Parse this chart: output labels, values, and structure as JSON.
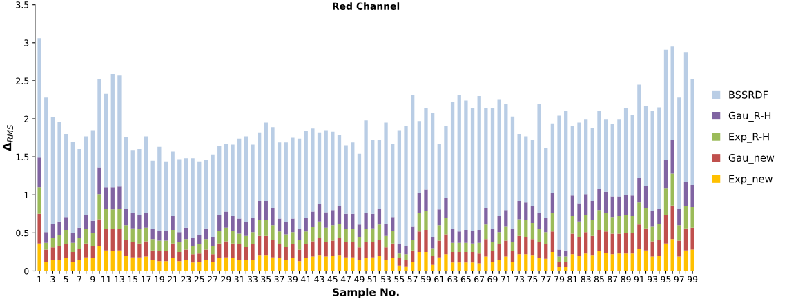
{
  "chart_data": {
    "type": "bar",
    "stacked": true,
    "title": "Red Channel",
    "xlabel": "Sample No.",
    "ylabel": "Δ$_{RMS}$",
    "categories": [
      "1",
      null,
      "3",
      null,
      "5",
      null,
      "7",
      null,
      "9",
      null,
      "11",
      null,
      "13",
      null,
      "15",
      null,
      "17",
      null,
      "19",
      null,
      "21",
      null,
      "23",
      null,
      "25",
      null,
      "27",
      null,
      "29",
      null,
      "31",
      null,
      "33",
      null,
      "35",
      null,
      "37",
      null,
      "39",
      null,
      "41",
      null,
      "43",
      null,
      "45",
      null,
      "47",
      null,
      "49",
      null,
      "51",
      null,
      "53",
      null,
      "55",
      null,
      "57",
      null,
      "59",
      null,
      "61",
      null,
      "63",
      null,
      "65",
      null,
      "67",
      null,
      "69",
      null,
      "71",
      null,
      "73",
      null,
      "75",
      null,
      "77",
      null,
      "79",
      null,
      "81",
      null,
      "83",
      null,
      "85",
      null,
      "87",
      null,
      "89",
      null,
      "91",
      null,
      "93",
      null,
      "95",
      null,
      "97",
      null,
      "99"
    ],
    "series": [
      {
        "name": "Exp_new",
        "color": "#ffc000",
        "values": [
          0.36,
          0.12,
          0.14,
          0.14,
          0.17,
          0.12,
          0.14,
          0.18,
          0.17,
          0.33,
          0.27,
          0.26,
          0.27,
          0.2,
          0.18,
          0.18,
          0.19,
          0.14,
          0.13,
          0.13,
          0.17,
          0.13,
          0.14,
          0.11,
          0.12,
          0.14,
          0.12,
          0.17,
          0.18,
          0.17,
          0.15,
          0.14,
          0.15,
          0.21,
          0.21,
          0.18,
          0.17,
          0.15,
          0.17,
          0.13,
          0.17,
          0.19,
          0.21,
          0.19,
          0.2,
          0.21,
          0.18,
          0.18,
          0.15,
          0.17,
          0.18,
          0.2,
          0.15,
          0.17,
          0.07,
          0.06,
          0.12,
          0.25,
          0.25,
          0.08,
          0.18,
          0.22,
          0.11,
          0.11,
          0.11,
          0.11,
          0.1,
          0.19,
          0.12,
          0.15,
          0.19,
          0.12,
          0.22,
          0.22,
          0.21,
          0.17,
          0.16,
          0.25,
          0.05,
          0.05,
          0.22,
          0.2,
          0.23,
          0.21,
          0.26,
          0.24,
          0.22,
          0.23,
          0.23,
          0.23,
          0.29,
          0.27,
          0.19,
          0.2,
          0.36,
          0.42,
          0.19,
          0.27,
          0.28
        ]
      },
      {
        "name": "Gau_new",
        "color": "#c0504d",
        "values": [
          0.39,
          0.16,
          0.17,
          0.19,
          0.18,
          0.13,
          0.15,
          0.18,
          0.16,
          0.35,
          0.28,
          0.29,
          0.28,
          0.21,
          0.2,
          0.18,
          0.2,
          0.13,
          0.13,
          0.13,
          0.19,
          0.12,
          0.14,
          0.11,
          0.11,
          0.14,
          0.1,
          0.19,
          0.21,
          0.19,
          0.2,
          0.18,
          0.2,
          0.25,
          0.25,
          0.23,
          0.18,
          0.17,
          0.18,
          0.15,
          0.18,
          0.2,
          0.23,
          0.19,
          0.2,
          0.22,
          0.2,
          0.2,
          0.16,
          0.21,
          0.2,
          0.21,
          0.16,
          0.19,
          0.1,
          0.09,
          0.15,
          0.27,
          0.29,
          0.12,
          0.22,
          0.26,
          0.14,
          0.14,
          0.14,
          0.14,
          0.13,
          0.23,
          0.14,
          0.2,
          0.21,
          0.14,
          0.24,
          0.23,
          0.21,
          0.21,
          0.19,
          0.27,
          0.07,
          0.07,
          0.27,
          0.25,
          0.28,
          0.25,
          0.28,
          0.28,
          0.27,
          0.26,
          0.27,
          0.27,
          0.32,
          0.29,
          0.2,
          0.21,
          0.37,
          0.44,
          0.21,
          0.29,
          0.29
        ]
      },
      {
        "name": "Exp_R-H",
        "color": "#9bbb59",
        "values": [
          0.35,
          0.09,
          0.13,
          0.14,
          0.19,
          0.12,
          0.14,
          0.19,
          0.17,
          0.33,
          0.27,
          0.26,
          0.27,
          0.19,
          0.18,
          0.19,
          0.18,
          0.15,
          0.14,
          0.14,
          0.18,
          0.13,
          0.14,
          0.11,
          0.12,
          0.14,
          0.11,
          0.17,
          0.18,
          0.17,
          0.14,
          0.14,
          0.16,
          0.21,
          0.21,
          0.19,
          0.17,
          0.16,
          0.16,
          0.13,
          0.17,
          0.19,
          0.21,
          0.19,
          0.2,
          0.19,
          0.17,
          0.17,
          0.14,
          0.17,
          0.18,
          0.2,
          0.15,
          0.17,
          0.06,
          0.07,
          0.14,
          0.24,
          0.25,
          0.1,
          0.2,
          0.22,
          0.12,
          0.12,
          0.12,
          0.11,
          0.14,
          0.19,
          0.12,
          0.16,
          0.19,
          0.12,
          0.22,
          0.22,
          0.21,
          0.17,
          0.16,
          0.24,
          0.07,
          0.07,
          0.23,
          0.2,
          0.23,
          0.21,
          0.26,
          0.24,
          0.22,
          0.23,
          0.23,
          0.22,
          0.29,
          0.27,
          0.2,
          0.21,
          0.36,
          0.42,
          0.2,
          0.29,
          0.27
        ]
      },
      {
        "name": "Gau_R-H",
        "color": "#8064a2",
        "values": [
          0.39,
          0.14,
          0.18,
          0.18,
          0.17,
          0.13,
          0.14,
          0.18,
          0.16,
          0.35,
          0.28,
          0.29,
          0.29,
          0.22,
          0.2,
          0.18,
          0.19,
          0.13,
          0.13,
          0.13,
          0.18,
          0.13,
          0.15,
          0.1,
          0.12,
          0.14,
          0.12,
          0.2,
          0.21,
          0.19,
          0.2,
          0.18,
          0.19,
          0.25,
          0.25,
          0.23,
          0.17,
          0.16,
          0.18,
          0.14,
          0.18,
          0.2,
          0.23,
          0.2,
          0.2,
          0.23,
          0.2,
          0.2,
          0.16,
          0.21,
          0.19,
          0.21,
          0.16,
          0.18,
          0.12,
          0.11,
          0.18,
          0.27,
          0.28,
          0.15,
          0.21,
          0.26,
          0.18,
          0.15,
          0.17,
          0.17,
          0.17,
          0.22,
          0.17,
          0.21,
          0.21,
          0.17,
          0.24,
          0.23,
          0.22,
          0.21,
          0.19,
          0.27,
          0.09,
          0.08,
          0.27,
          0.24,
          0.27,
          0.25,
          0.28,
          0.28,
          0.27,
          0.26,
          0.27,
          0.27,
          0.32,
          0.29,
          0.2,
          0.2,
          0.37,
          0.44,
          0.22,
          0.32,
          0.29
        ]
      },
      {
        "name": "BSSRDF",
        "color": "#b9cde5",
        "values": [
          1.57,
          1.77,
          1.4,
          1.31,
          1.09,
          1.2,
          1.03,
          1.04,
          1.19,
          1.16,
          1.23,
          1.49,
          1.46,
          0.94,
          0.83,
          0.87,
          1.01,
          0.9,
          1.1,
          0.91,
          0.85,
          0.96,
          0.91,
          1.05,
          0.97,
          0.9,
          1.08,
          0.91,
          0.89,
          0.94,
          1.05,
          1.13,
          0.96,
          0.9,
          1.03,
          1.06,
          1.0,
          1.05,
          1.06,
          1.19,
          1.14,
          1.09,
          0.94,
          1.08,
          1.03,
          0.94,
          0.9,
          0.94,
          0.93,
          1.22,
          0.97,
          0.9,
          1.33,
          0.96,
          1.5,
          1.58,
          1.72,
          0.94,
          1.07,
          1.63,
          0.86,
          0.95,
          1.67,
          1.79,
          1.7,
          1.61,
          1.76,
          1.31,
          1.59,
          1.53,
          1.39,
          1.48,
          0.88,
          0.87,
          0.87,
          1.44,
          0.92,
          0.91,
          1.76,
          1.83,
          0.92,
          1.06,
          0.98,
          0.96,
          1.02,
          0.95,
          0.95,
          1.01,
          1.14,
          1.06,
          1.23,
          1.05,
          1.31,
          1.33,
          1.45,
          1.23,
          1.46,
          1.7,
          1.39
        ]
      }
    ],
    "ylim": [
      0,
      3.5
    ],
    "yticks": [
      0,
      0.5,
      1,
      1.5,
      2,
      2.5,
      3,
      3.5
    ],
    "grid": false,
    "legend": "right"
  }
}
